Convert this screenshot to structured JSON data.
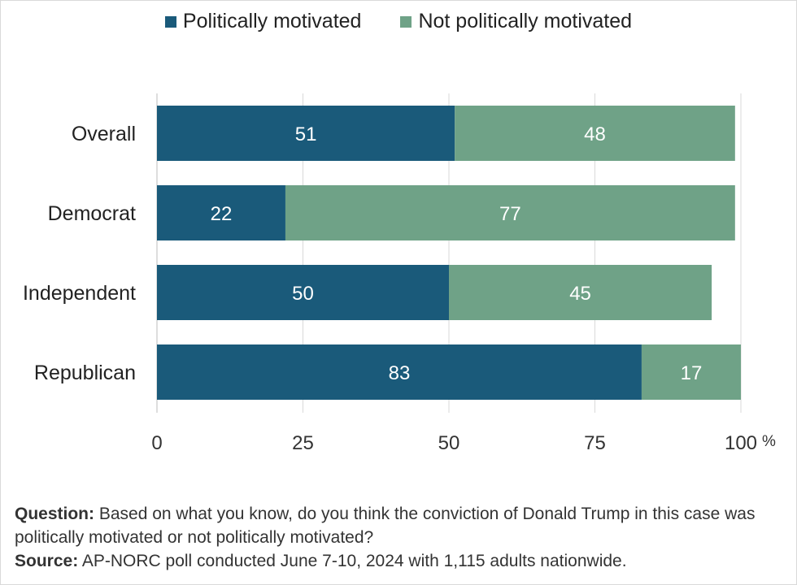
{
  "chart_data": {
    "type": "bar",
    "orientation": "horizontal",
    "stacked": true,
    "categories": [
      "Overall",
      "Democrat",
      "Independent",
      "Republican"
    ],
    "series": [
      {
        "name": "Politically motivated",
        "color": "#1a5a7a",
        "values": [
          51,
          22,
          50,
          83
        ]
      },
      {
        "name": "Not politically motivated",
        "color": "#6fa287",
        "values": [
          48,
          77,
          45,
          17
        ]
      }
    ],
    "xlim": [
      0,
      100
    ],
    "xticks": [
      0,
      25,
      50,
      75,
      100
    ],
    "xtick_labels": [
      "0",
      "25",
      "50",
      "75",
      "100"
    ],
    "x_unit": "%",
    "grid": true,
    "legend_position": "top"
  },
  "notes": {
    "question_label": "Question:",
    "question_text": " Based on what you know, do you think the conviction of Donald Trump in this case was politically motivated or not politically motivated?",
    "source_label": "Source:",
    "source_text": " AP-NORC poll conducted June 7-10, 2024 with 1,115 adults nationwide."
  }
}
